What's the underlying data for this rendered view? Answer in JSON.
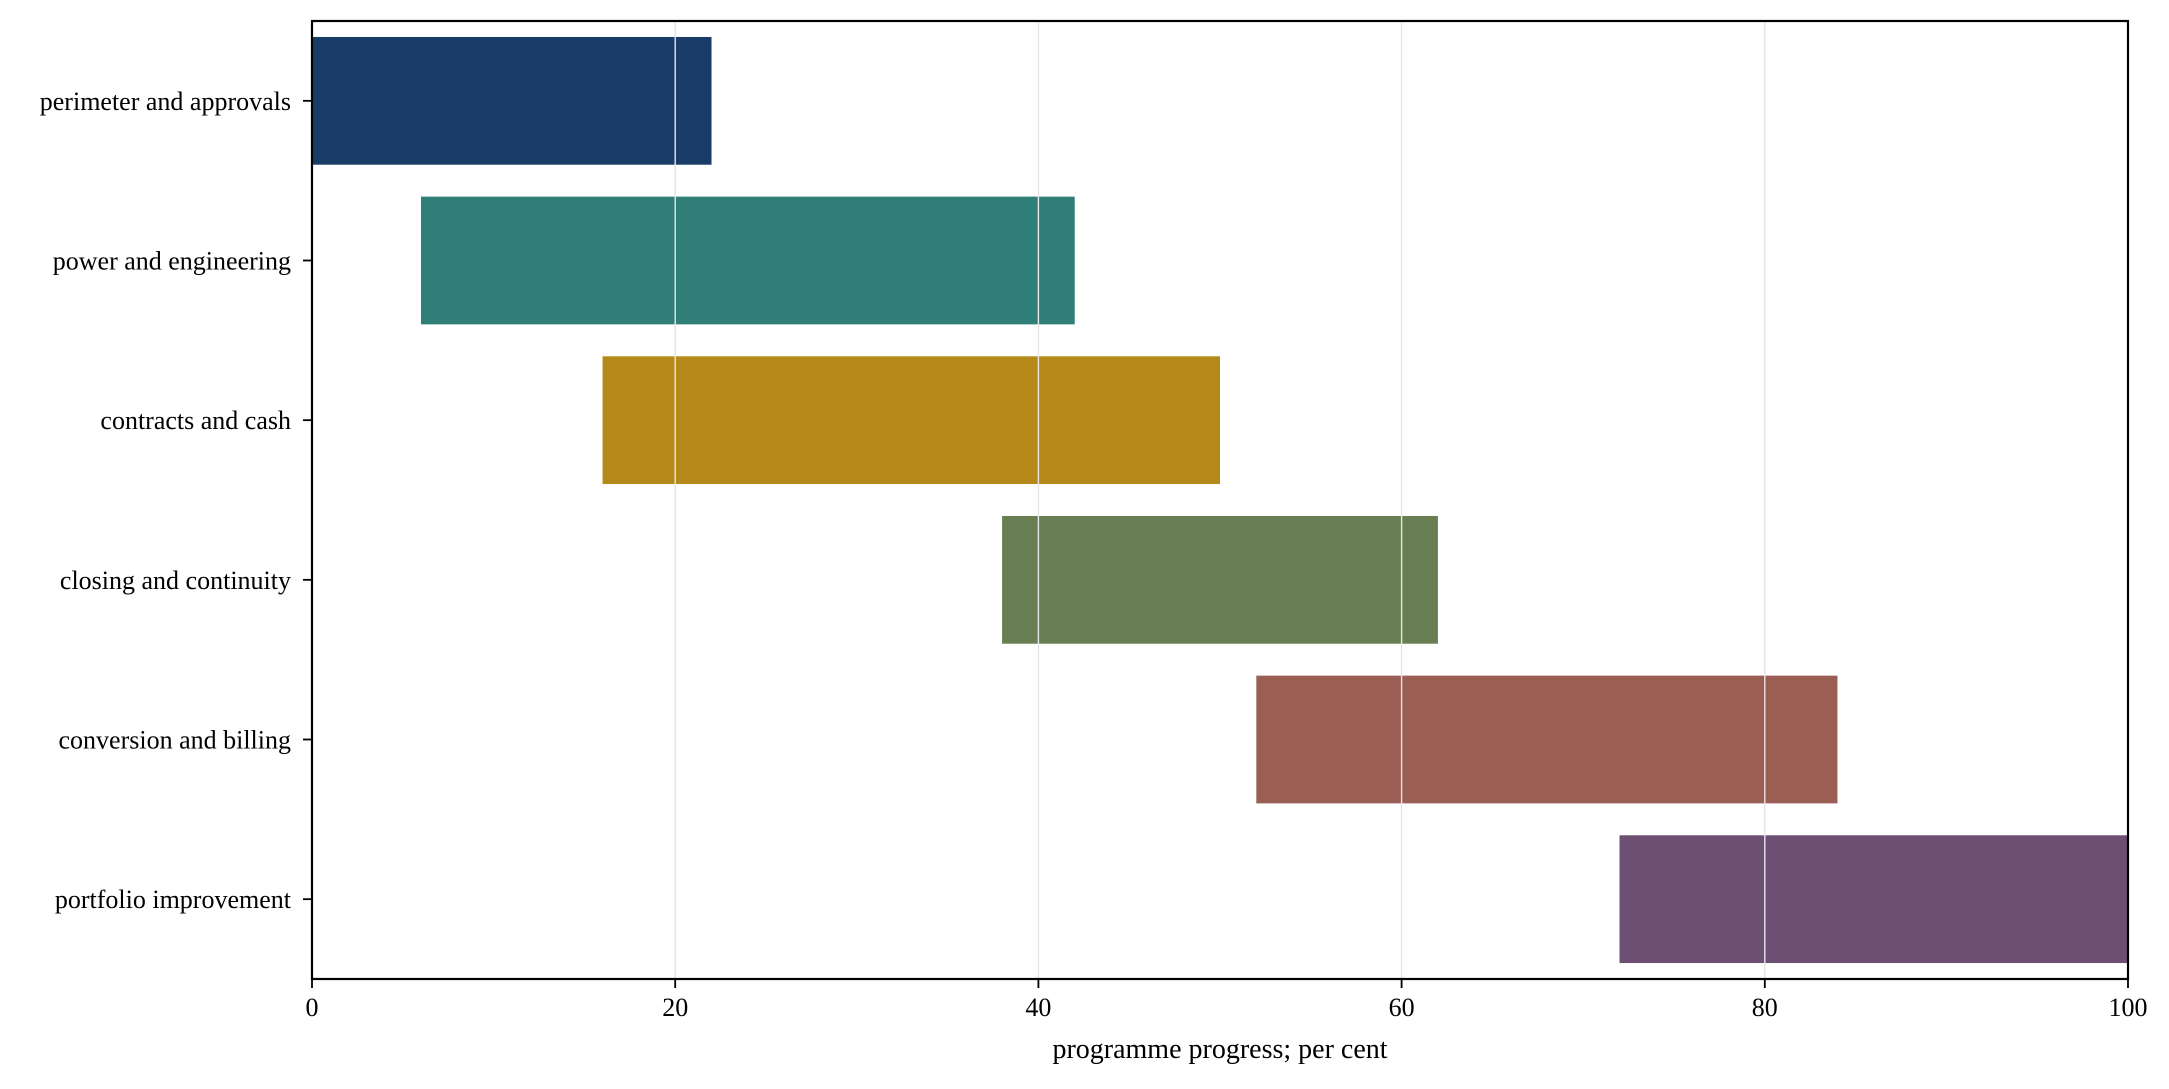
{
  "chart_data": {
    "type": "bar",
    "orientation": "horizontal",
    "variant": "range",
    "title": "",
    "xlabel": "programme progress; per cent",
    "ylabel": "",
    "xlim": [
      0,
      100
    ],
    "xticks": [
      0,
      20,
      40,
      60,
      80,
      100
    ],
    "grid": "vertical",
    "categories": [
      "perimeter and approvals",
      "power and engineering",
      "contracts and cash",
      "closing and continuity",
      "conversion and billing",
      "portfolio improvement"
    ],
    "ranges": [
      {
        "start": 0,
        "end": 22,
        "color": "#193c68"
      },
      {
        "start": 6,
        "end": 42,
        "color": "#2f7f78"
      },
      {
        "start": 16,
        "end": 50,
        "color": "#b48919"
      },
      {
        "start": 38,
        "end": 62,
        "color": "#6a7e53"
      },
      {
        "start": 52,
        "end": 84,
        "color": "#9b5e54"
      },
      {
        "start": 72,
        "end": 100,
        "color": "#6c4f72"
      }
    ]
  }
}
